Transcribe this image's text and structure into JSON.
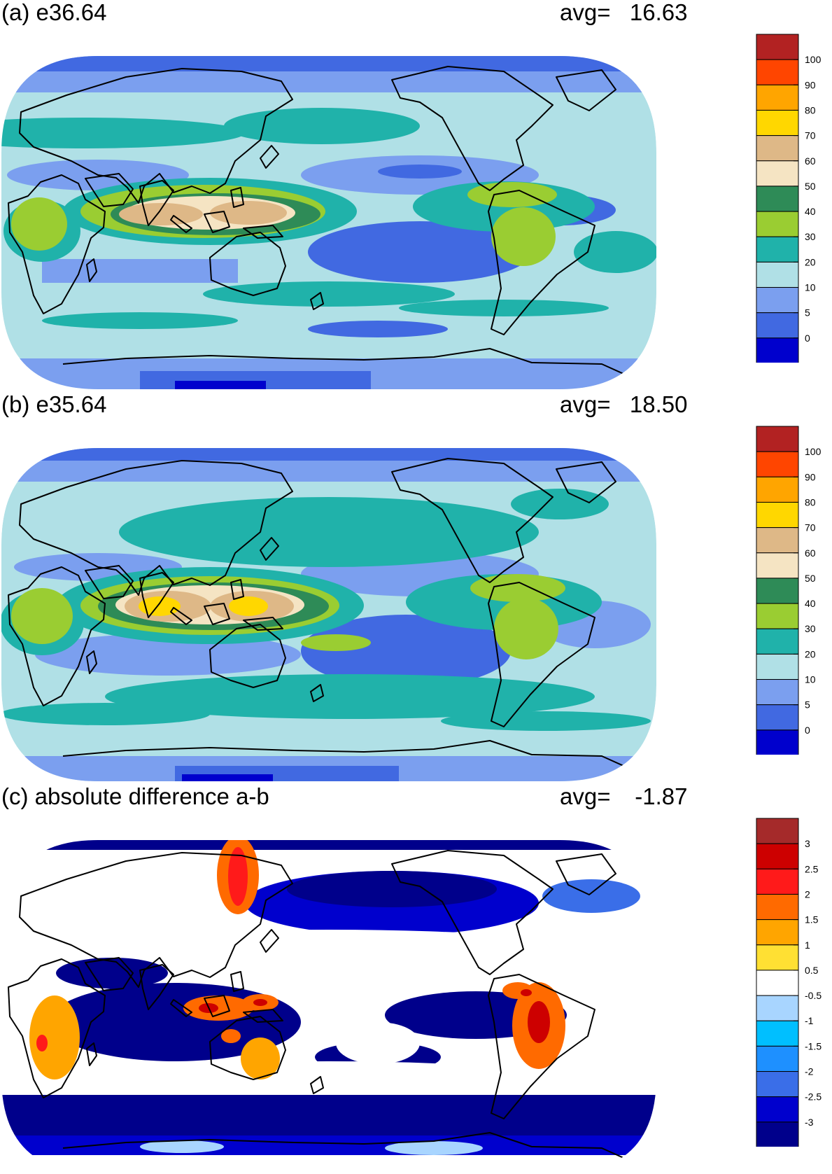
{
  "avg_label": "avg=",
  "panels": [
    {
      "id": "a",
      "title": "(a) e36.64",
      "avg_value": "16.63",
      "colorbar": {
        "labels": [
          "100",
          "90",
          "80",
          "70",
          "60",
          "50",
          "40",
          "30",
          "20",
          "10",
          "5",
          "0"
        ],
        "colors": [
          "#b22222",
          "#ff4500",
          "#ffa500",
          "#ffd700",
          "#deb887",
          "#f5e4c3",
          "#2e8b57",
          "#9acd32",
          "#20b2aa",
          "#b0e0e6",
          "#7b9fef",
          "#4169e1",
          "#0000cd"
        ]
      }
    },
    {
      "id": "b",
      "title": "(b) e35.64",
      "avg_value": "18.50",
      "colorbar": {
        "labels": [
          "100",
          "90",
          "80",
          "70",
          "60",
          "50",
          "40",
          "30",
          "20",
          "10",
          "5",
          "0"
        ],
        "colors": [
          "#b22222",
          "#ff4500",
          "#ffa500",
          "#ffd700",
          "#deb887",
          "#f5e4c3",
          "#2e8b57",
          "#9acd32",
          "#20b2aa",
          "#b0e0e6",
          "#7b9fef",
          "#4169e1",
          "#0000cd"
        ]
      }
    },
    {
      "id": "c",
      "title": "(c) absolute difference a-b",
      "avg_value": "-1.87",
      "colorbar": {
        "labels": [
          "3",
          "2.5",
          "2",
          "1.5",
          "1",
          "0.5",
          "-0.5",
          "-1",
          "-1.5",
          "-2",
          "-2.5",
          "-3"
        ],
        "colors": [
          "#a52a2a",
          "#cd0000",
          "#ff1a1a",
          "#ff6a00",
          "#ffa500",
          "#ffe033",
          "#ffffff",
          "#a8d5ff",
          "#00bfff",
          "#1e90ff",
          "#3a6ee8",
          "#0000cd",
          "#00008b"
        ]
      }
    }
  ]
}
